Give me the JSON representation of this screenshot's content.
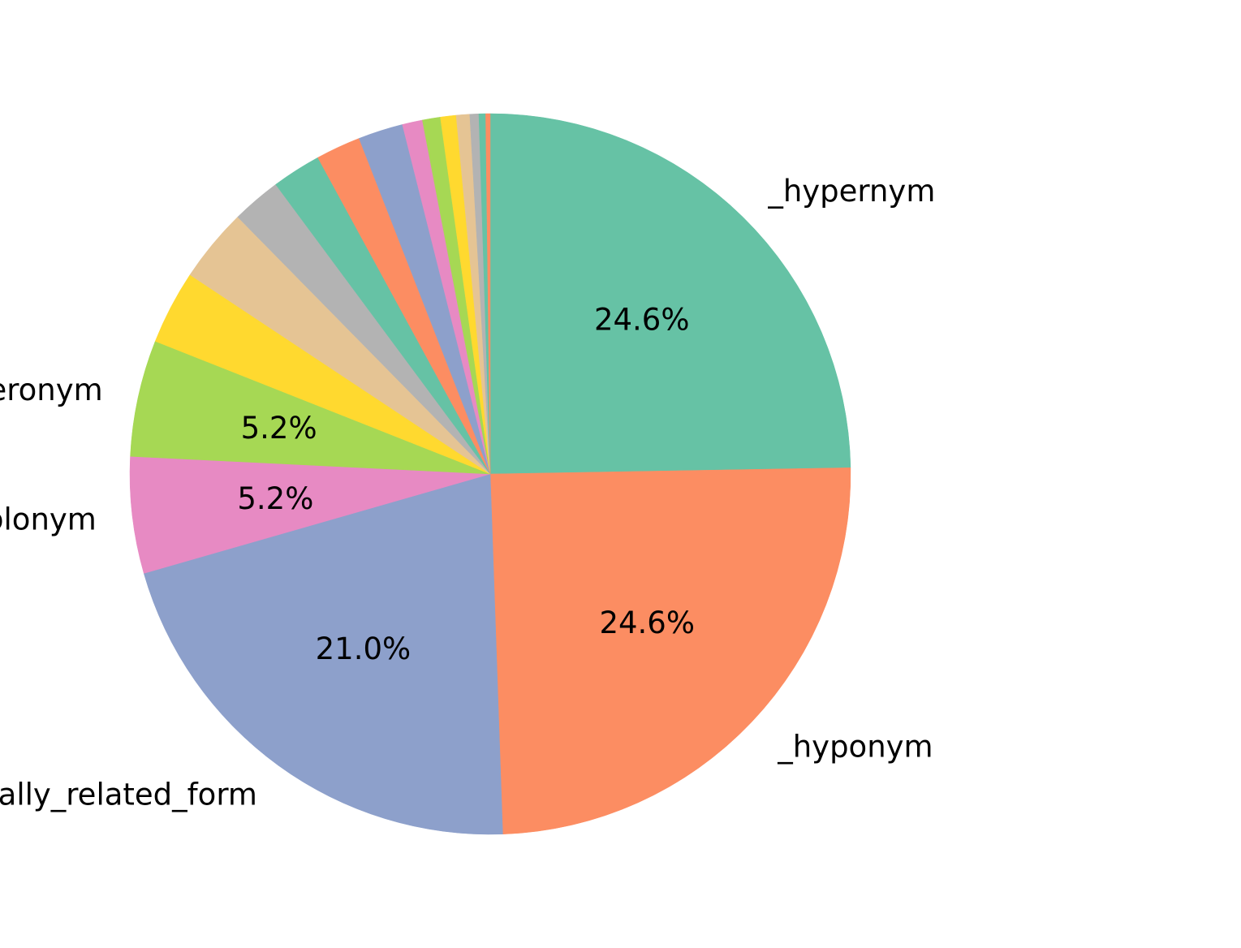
{
  "chart_data": {
    "type": "pie",
    "title": "",
    "start_angle_deg": 90,
    "direction": "clockwise",
    "slices": [
      {
        "label": "_hypernym",
        "value": 24.6,
        "pct_label": "24.6%",
        "color": "#66c2a5"
      },
      {
        "label": "_hyponym",
        "value": 24.6,
        "pct_label": "24.6%",
        "color": "#fc8d62"
      },
      {
        "label": "_derivationally_related_form",
        "value": 21.0,
        "pct_label": "21.0%",
        "color": "#8da0cb"
      },
      {
        "label": "_member_holonym",
        "value": 5.2,
        "pct_label": "5.2%",
        "color": "#e78ac3"
      },
      {
        "label": "_member_meronym",
        "value": 5.2,
        "pct_label": "5.2%",
        "color": "#a6d854"
      },
      {
        "label": "",
        "value": 3.3,
        "pct_label": "",
        "color": "#ffd92f"
      },
      {
        "label": "",
        "value": 3.3,
        "pct_label": "",
        "color": "#e5c494"
      },
      {
        "label": "",
        "value": 2.2,
        "pct_label": "",
        "color": "#b3b3b3"
      },
      {
        "label": "",
        "value": 2.2,
        "pct_label": "",
        "color": "#66c2a5"
      },
      {
        "label": "",
        "value": 2.0,
        "pct_label": "",
        "color": "#fc8d62"
      },
      {
        "label": "",
        "value": 2.0,
        "pct_label": "",
        "color": "#8da0cb"
      },
      {
        "label": "",
        "value": 0.9,
        "pct_label": "",
        "color": "#e78ac3"
      },
      {
        "label": "",
        "value": 0.8,
        "pct_label": "",
        "color": "#a6d854"
      },
      {
        "label": "",
        "value": 0.7,
        "pct_label": "",
        "color": "#ffd92f"
      },
      {
        "label": "",
        "value": 0.6,
        "pct_label": "",
        "color": "#e5c494"
      },
      {
        "label": "",
        "value": 0.4,
        "pct_label": "",
        "color": "#b3b3b3"
      },
      {
        "label": "",
        "value": 0.3,
        "pct_label": "",
        "color": "#66c2a5"
      },
      {
        "label": "",
        "value": 0.2,
        "pct_label": "",
        "color": "#fc8d62"
      }
    ]
  }
}
